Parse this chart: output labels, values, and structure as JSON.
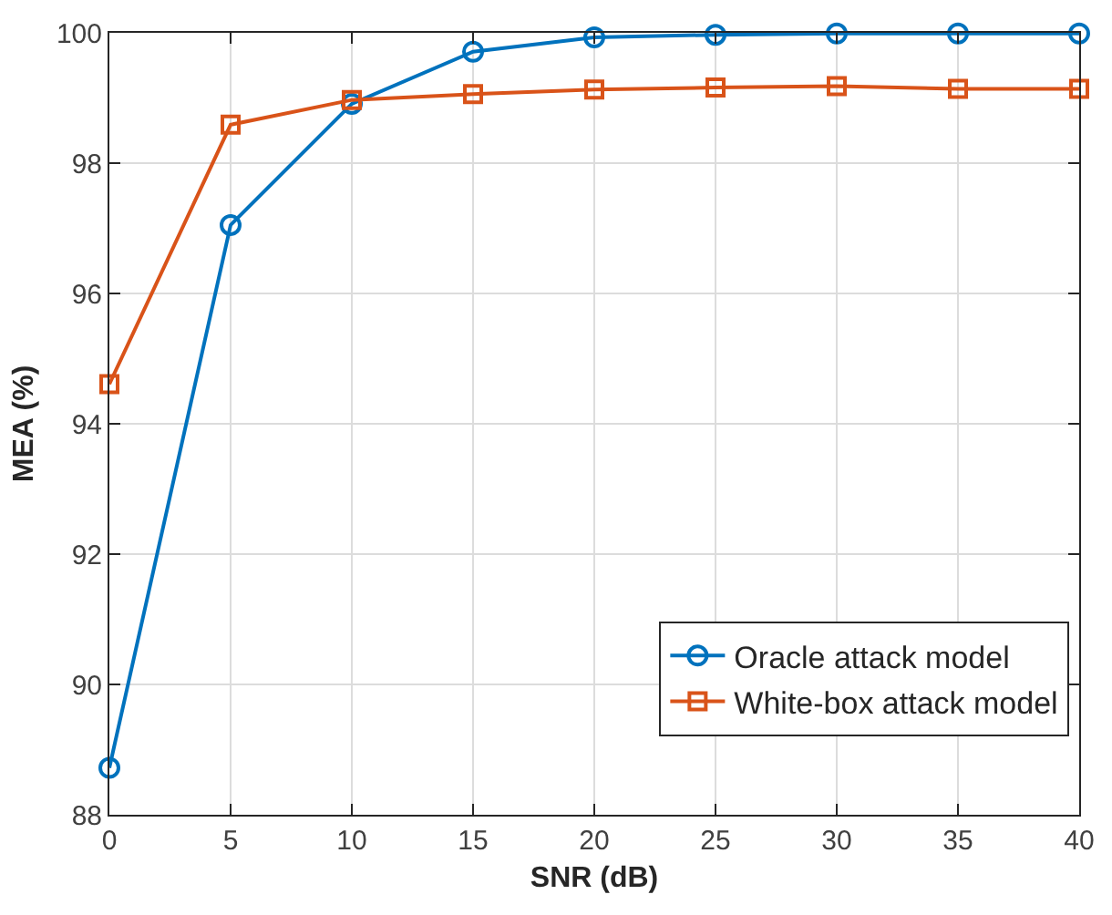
{
  "chart_data": {
    "type": "line",
    "xlabel": "SNR (dB)",
    "ylabel": "MEA (%)",
    "x": [
      0,
      5,
      10,
      15,
      20,
      25,
      30,
      35,
      40
    ],
    "series": [
      {
        "name": "Oracle attack model",
        "color": "#0072bd",
        "marker": "circle",
        "values": [
          88.72,
          97.05,
          98.91,
          99.71,
          99.93,
          99.97,
          99.99,
          99.99,
          99.99
        ]
      },
      {
        "name": "White-box attack model",
        "color": "#d95319",
        "marker": "square",
        "values": [
          94.61,
          98.59,
          98.97,
          99.06,
          99.13,
          99.16,
          99.18,
          99.14,
          99.14
        ]
      }
    ],
    "xlim": [
      0,
      40
    ],
    "xticks": [
      0,
      5,
      10,
      15,
      20,
      25,
      30,
      35,
      40
    ],
    "ylim": [
      88,
      100
    ],
    "yticks": [
      88,
      90,
      92,
      94,
      96,
      98,
      100
    ],
    "grid": true,
    "legend": "bottom right",
    "line_style": "solid"
  }
}
